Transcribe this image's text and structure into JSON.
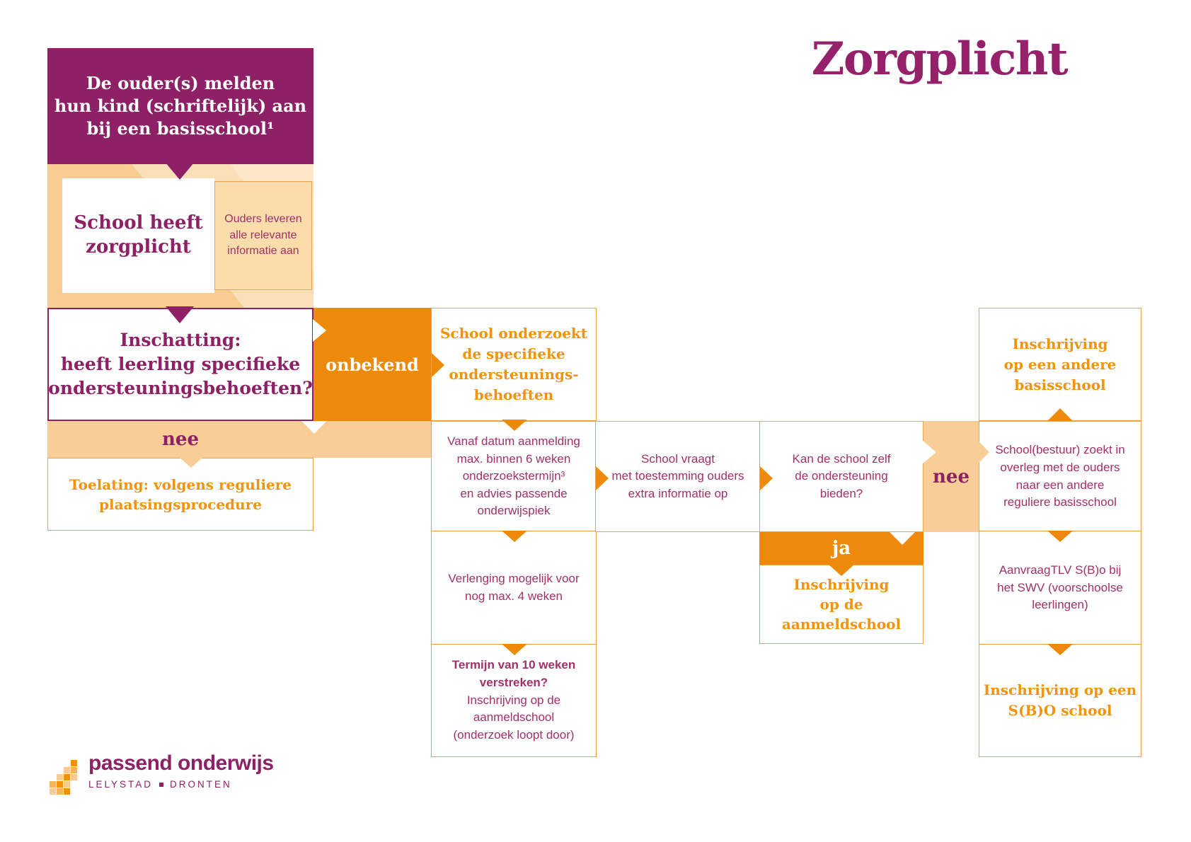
{
  "title": "Zorgplicht",
  "colors": {
    "purple": "#8E2166",
    "magenta_text": "#A23069",
    "orange": "#EE8A0B",
    "orange_border": "#F0A143",
    "orange_text": "#F2930C",
    "band_light": "#F9CD96"
  },
  "boxes": {
    "start": "De ouder(s) melden\nhun kind (schriftelijk) aan\nbij een basisschool¹",
    "zorgplicht": "School heeft\nzorgplicht",
    "ouders": "Ouders leveren\nalle relevante\ninformatie aan",
    "inschatting": "Inschatting:\nheeft leerling specifieke\nondersteuningsbehoeften?",
    "toelating": "Toelating: volgens reguliere\nplaatsingsprocedure",
    "onderzoekt": "School onderzoekt\nde specifieke\nondersteunings-\nbehoeften",
    "vanaf": "Vanaf datum aanmelding\nmax. binnen 6 weken\nonderzoekstermijn³\nen advies passende\nonderwijspiek",
    "verlenging": "Verlenging mogelijk voor\nnog max. 4 weken",
    "termijn_vraag": "Termijn van 10 weken\nverstreken?",
    "termijn_vervolg": "Inschrijving op de\naanmeldschool\n(onderzoek loopt door)",
    "vraagt": "School vraagt\nmet toestemming ouders\nextra informatie op",
    "kan": "Kan de school zelf\nde ondersteuning\nbieden?",
    "aanmeldschool": "Inschrijving\nop de\naanmeldschool",
    "andere_basisschool": "Inschrijving\nop een andere\nbasisschool",
    "bestuur_zoekt": "School(bestuur) zoekt in\noverleg met de ouders\nnaar een andere\nreguliere basisschool",
    "aanvraag_tlv": "AanvraagTLV S(B)o bij\nhet SWV (voorschoolse\nleerlingen)",
    "sbo_school": "Inschrijving op een\nS(B)O school"
  },
  "labels": {
    "nee_left": "nee",
    "onbekend": "onbekend",
    "ja": "ja",
    "nee_right": "nee"
  },
  "logo": {
    "name": "passend onderwijs",
    "city_left": "LELYSTAD",
    "city_right": "DRONTEN"
  }
}
